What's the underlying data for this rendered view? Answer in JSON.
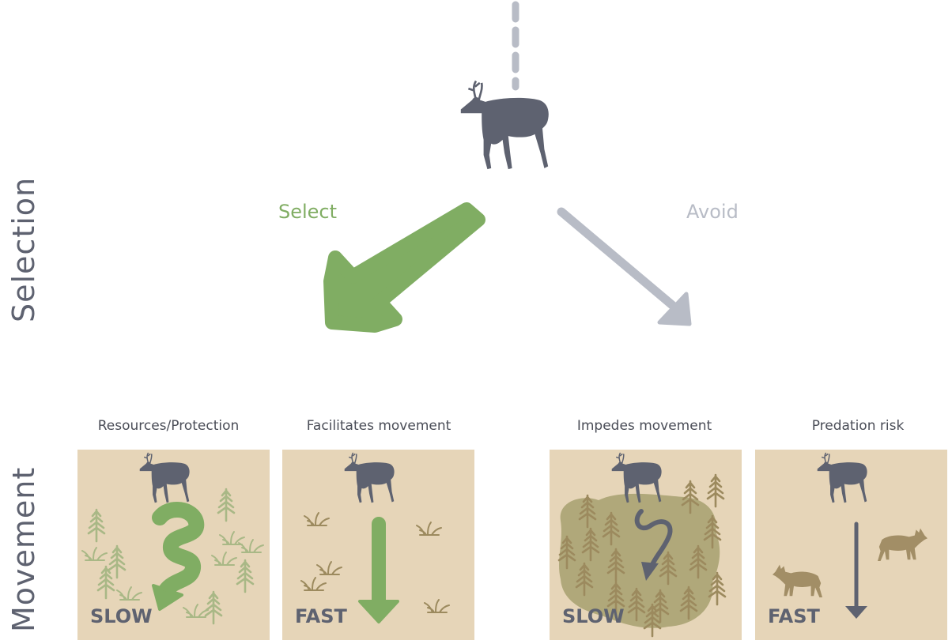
{
  "axis_labels": {
    "selection": "Selection",
    "movement": "Movement"
  },
  "choices": {
    "select": "Select",
    "avoid": "Avoid"
  },
  "panels": [
    {
      "title": "Resources/Protection",
      "speed": "SLOW"
    },
    {
      "title": "Facilitates movement",
      "speed": "FAST"
    },
    {
      "title": "Impedes movement",
      "speed": "SLOW"
    },
    {
      "title": "Predation risk",
      "speed": "FAST"
    }
  ],
  "colors": {
    "select_green": "#80ad63",
    "avoid_gray": "#b8bcc6",
    "caribou": "#5e6270",
    "panel_bg": "#e6d5b8",
    "tree_light": "#a9b886",
    "tree_brown": "#9c8a5e",
    "wolf": "#a28e66"
  },
  "icons": [
    "caribou-icon",
    "tree-icon",
    "grass-icon",
    "wolf-icon",
    "arrow-icon"
  ]
}
